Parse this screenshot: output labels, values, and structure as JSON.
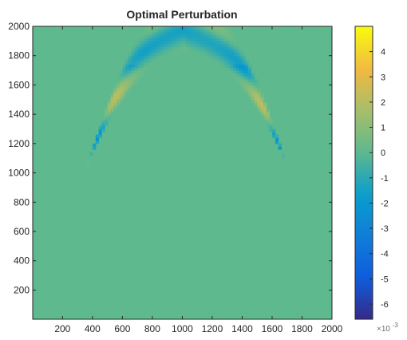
{
  "chart_data": {
    "type": "heatmap",
    "title": "Optimal Perturbation",
    "xlabel": "",
    "ylabel": "",
    "xlim": [
      1,
      2000
    ],
    "ylim": [
      1,
      2000
    ],
    "x_ticks": [
      200,
      400,
      600,
      800,
      1000,
      1200,
      1400,
      1600,
      1800,
      2000
    ],
    "y_ticks": [
      200,
      400,
      600,
      800,
      1000,
      1200,
      1400,
      1600,
      1800,
      2000
    ],
    "colormap": "parula",
    "colorbar": {
      "clim": [
        -6.6,
        5.0
      ],
      "ticks": [
        -6,
        -5,
        -4,
        -3,
        -2,
        -1,
        0,
        1,
        2,
        3,
        4
      ],
      "exponent_label": "×10",
      "exponent_power": "-3"
    },
    "band": {
      "description_values": "parabolic band of perturbation; zero elsewhere",
      "apex_x": 1030,
      "apex_y_lower": 1810,
      "lower_edge_at_x_0": 0,
      "upper_edge_at_x_1950": 0,
      "oscillation_period_along_band": 420
    },
    "colors": {
      "background_zero": "#5fb98e",
      "axis": "#262626"
    }
  }
}
